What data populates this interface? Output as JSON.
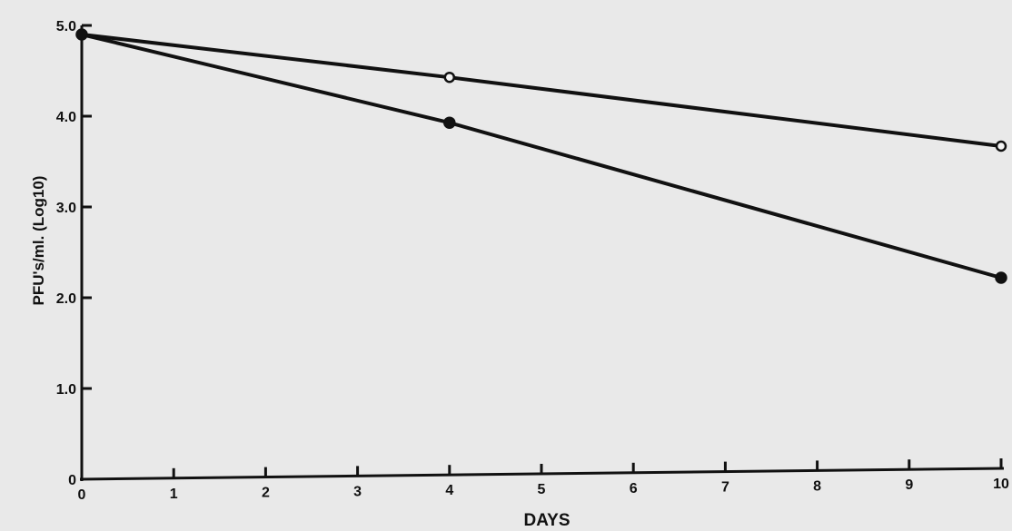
{
  "chart_data": {
    "type": "line",
    "title": "",
    "xlabel": "DAYS",
    "ylabel": "PFU's/ml. (Log10)",
    "xlim": [
      0,
      10
    ],
    "ylim": [
      0,
      5.0
    ],
    "x_ticks": [
      0,
      1,
      2,
      3,
      4,
      5,
      6,
      7,
      8,
      9,
      10
    ],
    "x_tick_labels": [
      "0",
      "1",
      "2",
      "3",
      "4",
      "5",
      "6",
      "7",
      "8",
      "9",
      "10"
    ],
    "y_ticks": [
      0,
      1.0,
      2.0,
      3.0,
      4.0,
      5.0
    ],
    "y_tick_labels": [
      "0",
      "1.0",
      "2.0",
      "3.0",
      "4.0",
      "5.0"
    ],
    "grid": false,
    "series": [
      {
        "marker": "open-circle",
        "x": [
          0,
          4,
          10
        ],
        "y": [
          4.9,
          4.38,
          3.55
        ]
      },
      {
        "marker": "filled-circle",
        "x": [
          0,
          4,
          10
        ],
        "y": [
          4.9,
          3.88,
          2.1
        ]
      }
    ]
  }
}
